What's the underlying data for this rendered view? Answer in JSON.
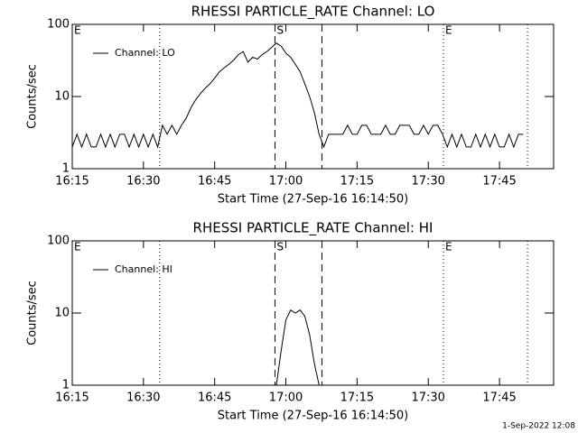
{
  "chart_data": [
    {
      "type": "line",
      "title": "RHESSI PARTICLE_RATE Channel: LO",
      "xlabel": "Start Time (27-Sep-16 16:14:50)",
      "ylabel": "Counts/sec",
      "log_y": true,
      "legend": "upper left",
      "xlim": [
        975,
        1076.4
      ],
      "ylim": [
        1,
        100
      ],
      "xticks": [
        {
          "value": 975,
          "label": "16:15"
        },
        {
          "value": 990,
          "label": "16:30"
        },
        {
          "value": 1005,
          "label": "16:45"
        },
        {
          "value": 1020,
          "label": "17:00"
        },
        {
          "value": 1035,
          "label": "17:15"
        },
        {
          "value": 1050,
          "label": "17:30"
        },
        {
          "value": 1065,
          "label": "17:45"
        }
      ],
      "yticks": [
        1,
        10,
        100
      ],
      "vlines": [
        {
          "x": 993.4,
          "style": "dotted"
        },
        {
          "x": 1017.7,
          "style": "dashed"
        },
        {
          "x": 1027.6,
          "style": "dashed"
        },
        {
          "x": 1053.2,
          "style": "dotted"
        },
        {
          "x": 1070.9,
          "style": "dotted"
        }
      ],
      "markers": [
        {
          "label": "E",
          "x": 975
        },
        {
          "label": "S",
          "x": 1017.7
        },
        {
          "label": "E",
          "x": 1053.2
        }
      ],
      "x": [
        975,
        976,
        977,
        978,
        979,
        980,
        981,
        982,
        983,
        984,
        985,
        986,
        987,
        988,
        989,
        990,
        991,
        992,
        993,
        994,
        995,
        996,
        997,
        998,
        999,
        1000,
        1001,
        1002,
        1003,
        1004,
        1005,
        1006,
        1007,
        1008,
        1009,
        1010,
        1011,
        1012,
        1013,
        1014,
        1015,
        1016,
        1017,
        1018,
        1019,
        1020,
        1021,
        1022,
        1023,
        1024,
        1025,
        1026,
        1027,
        1028,
        1029,
        1030,
        1031,
        1032,
        1033,
        1034,
        1035,
        1036,
        1037,
        1038,
        1039,
        1040,
        1041,
        1042,
        1043,
        1044,
        1045,
        1046,
        1047,
        1048,
        1049,
        1050,
        1051,
        1052,
        1053,
        1054,
        1055,
        1056,
        1057,
        1058,
        1059,
        1060,
        1061,
        1062,
        1063,
        1064,
        1065,
        1066,
        1067,
        1068,
        1069,
        1070
      ],
      "series": [
        {
          "name": "Channel: LO",
          "color": "#000000",
          "values": [
            2,
            3,
            2,
            3,
            2,
            2,
            3,
            2,
            3,
            2,
            3,
            3,
            2,
            3,
            2,
            3,
            2,
            3,
            2,
            4,
            3,
            4,
            3,
            4,
            5,
            7,
            9,
            11,
            13,
            15,
            18,
            22,
            25,
            28,
            32,
            38,
            42,
            30,
            35,
            33,
            38,
            42,
            48,
            55,
            50,
            40,
            35,
            28,
            22,
            15,
            10,
            6,
            3,
            2,
            3,
            3,
            3,
            3,
            4,
            3,
            3,
            4,
            4,
            3,
            3,
            3,
            4,
            3,
            3,
            4,
            4,
            4,
            3,
            3,
            4,
            3,
            4,
            4,
            3,
            2,
            3,
            2,
            3,
            2,
            2,
            3,
            2,
            3,
            2,
            3,
            2,
            2,
            3,
            2,
            3,
            3
          ]
        }
      ]
    },
    {
      "type": "line",
      "title": "RHESSI PARTICLE_RATE Channel: HI",
      "xlabel": "Start Time (27-Sep-16 16:14:50)",
      "ylabel": "Counts/sec",
      "log_y": true,
      "legend": "upper left",
      "xlim": [
        975,
        1076.4
      ],
      "ylim": [
        1,
        100
      ],
      "xticks": [
        {
          "value": 975,
          "label": "16:15"
        },
        {
          "value": 990,
          "label": "16:30"
        },
        {
          "value": 1005,
          "label": "16:45"
        },
        {
          "value": 1020,
          "label": "17:00"
        },
        {
          "value": 1035,
          "label": "17:15"
        },
        {
          "value": 1050,
          "label": "17:30"
        },
        {
          "value": 1065,
          "label": "17:45"
        }
      ],
      "yticks": [
        1,
        10,
        100
      ],
      "vlines": [
        {
          "x": 993.4,
          "style": "dotted"
        },
        {
          "x": 1017.7,
          "style": "dashed"
        },
        {
          "x": 1027.6,
          "style": "dashed"
        },
        {
          "x": 1053.2,
          "style": "dotted"
        },
        {
          "x": 1070.9,
          "style": "dotted"
        }
      ],
      "markers": [
        {
          "label": "E",
          "x": 975
        },
        {
          "label": "S",
          "x": 1017.7
        },
        {
          "label": "E",
          "x": 1053.2
        }
      ],
      "x": [
        1018,
        1019,
        1020,
        1021,
        1022,
        1023,
        1024,
        1025,
        1026,
        1027
      ],
      "series": [
        {
          "name": "Channel: HI",
          "color": "#000000",
          "values": [
            1,
            3,
            8,
            11,
            10,
            11,
            9,
            5,
            2,
            1
          ]
        }
      ]
    }
  ],
  "footer": "1-Sep-2022 12:08"
}
